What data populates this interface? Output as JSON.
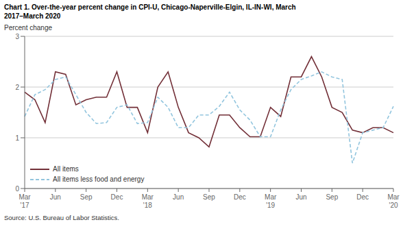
{
  "chart_data": {
    "type": "line",
    "title": "Chart 1. Over-the-year percent change in CPI-U, Chicago-Naperville-Elgin, IL-IN-WI, March\n2017–March 2020",
    "y_label": "Percent change",
    "annotations": [
      "Source: U.S. Bureau of Labor Statistics."
    ],
    "categories": [
      "Mar\n'17",
      null,
      null,
      "Jun",
      null,
      null,
      "Sep",
      null,
      null,
      "Dec",
      null,
      null,
      "Mar\n'18",
      null,
      null,
      "Jun",
      null,
      null,
      "Sep",
      null,
      null,
      "Dec",
      null,
      null,
      "Mar\n'19",
      null,
      null,
      "Jun",
      null,
      null,
      "Sep",
      null,
      null,
      "Dec",
      null,
      null,
      "Mar\n'20"
    ],
    "series": [
      {
        "name": "All items",
        "color": "#722F37",
        "line_style": "solid",
        "values": [
          1.9,
          1.75,
          1.3,
          2.3,
          2.25,
          1.65,
          1.75,
          1.8,
          1.8,
          2.3,
          1.6,
          1.6,
          1.1,
          2.0,
          2.3,
          1.6,
          1.1,
          1.0,
          0.82,
          1.45,
          1.45,
          1.2,
          1.02,
          1.02,
          1.6,
          1.42,
          2.2,
          2.2,
          2.6,
          2.2,
          1.6,
          1.5,
          1.15,
          1.1,
          1.2,
          1.2,
          1.1
        ]
      },
      {
        "name": "All items less food and energy",
        "color": "#92C5DE",
        "line_style": "dashed",
        "values": [
          1.42,
          1.85,
          1.95,
          2.15,
          2.2,
          1.85,
          1.5,
          1.28,
          1.3,
          1.6,
          1.65,
          1.28,
          1.3,
          1.8,
          1.6,
          1.2,
          1.2,
          1.45,
          1.45,
          1.62,
          1.9,
          1.55,
          1.35,
          1.02,
          1.02,
          1.55,
          1.95,
          2.15,
          2.22,
          2.3,
          2.2,
          2.15,
          0.5,
          1.1,
          1.15,
          1.2,
          1.62
        ]
      }
    ],
    "ylim": [
      0,
      3
    ],
    "yticks": [
      0,
      1,
      2,
      3
    ],
    "grid": true,
    "legend": "lower left"
  }
}
